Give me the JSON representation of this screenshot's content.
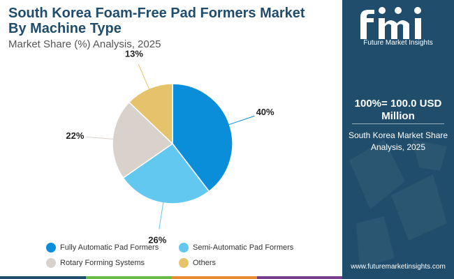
{
  "header": {
    "title_line1": "South Korea Foam-Free Pad Formers Market",
    "title_line2": "By Machine Type",
    "subtitle": "Market Share (%) Analysis, 2025"
  },
  "chart_data": {
    "type": "pie",
    "title": "South Korea Foam-Free Pad Formers Market By Machine Type",
    "subtitle": "Market Share (%) Analysis, 2025",
    "categories": [
      "Fully Automatic Pad Formers",
      "Semi-Automatic Pad Formers",
      "Rotary Forming Systems",
      "Others"
    ],
    "values": [
      40,
      26,
      22,
      13
    ],
    "labels": [
      "40%",
      "26%",
      "22%",
      "13%"
    ],
    "colors": [
      "#0a8ed9",
      "#62c8f0",
      "#d9d2cc",
      "#e6c36a"
    ],
    "legend_position": "bottom"
  },
  "side_panel": {
    "logo_letters": "fmi",
    "logo_text": "Future Market Insights",
    "headline": "100%= 100.0 USD Million",
    "subtext": "South Korea Market Share Analysis, 2025",
    "website": "www.futuremarketinsights.com",
    "background": "#1f4d6b"
  },
  "bottom_bar_colors": [
    "#1f4d6b",
    "#6dbb45",
    "#e88a2e",
    "#7a3f8c"
  ]
}
